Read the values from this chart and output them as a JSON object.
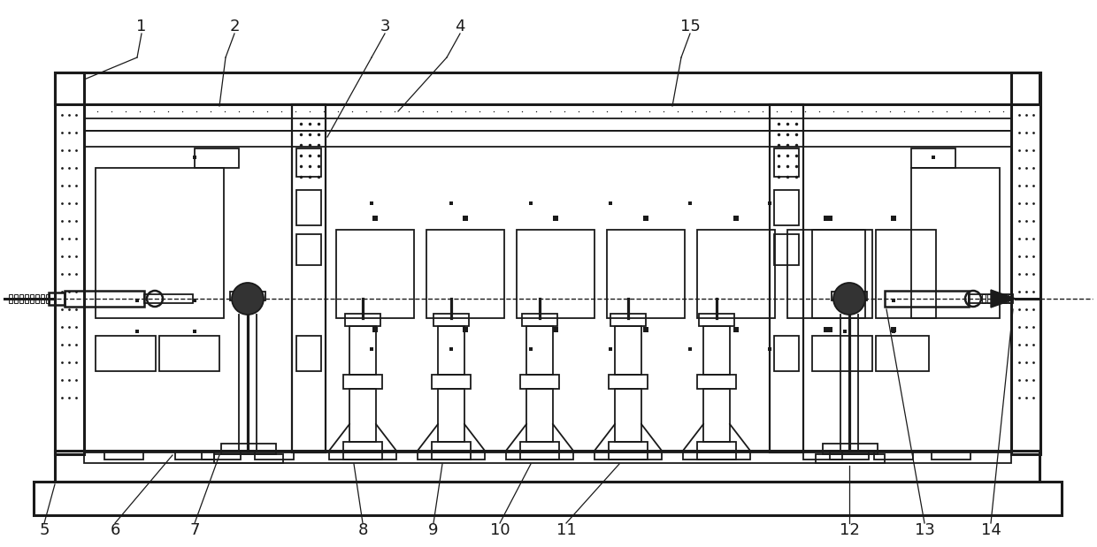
{
  "bg_color": "#ffffff",
  "lc": "#1a1a1a",
  "lw": 1.3,
  "tlw": 2.2,
  "fig_w": 12.4,
  "fig_h": 6.19,
  "label_fs": 13,
  "label_color": "#1a1a1a"
}
